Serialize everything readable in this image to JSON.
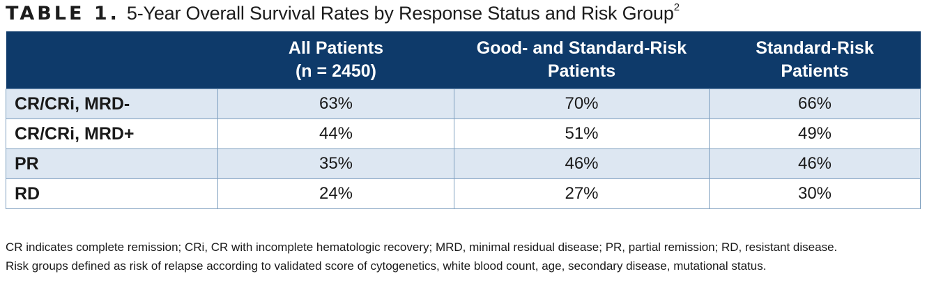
{
  "title": {
    "label": "TABLE 1.",
    "text": "5-Year Overall Survival Rates by Response Status and Risk Group",
    "superscript": "2"
  },
  "table": {
    "headers": [
      {
        "line1": "",
        "line2": ""
      },
      {
        "line1": "All Patients",
        "line2": "(n = 2450)"
      },
      {
        "line1": "Good- and Standard-Risk",
        "line2": "Patients"
      },
      {
        "line1": "Standard-Risk",
        "line2": "Patients"
      }
    ],
    "rows": [
      {
        "label": "CR/CRi, MRD-",
        "values": [
          "63%",
          "70%",
          "66%"
        ]
      },
      {
        "label": "CR/CRi, MRD+",
        "values": [
          "44%",
          "51%",
          "49%"
        ]
      },
      {
        "label": "PR",
        "values": [
          "35%",
          "46%",
          "46%"
        ]
      },
      {
        "label": "RD",
        "values": [
          "24%",
          "27%",
          "30%"
        ]
      }
    ]
  },
  "footnotes": [
    "CR indicates complete remission; CRi, CR with incomplete hematologic recovery; MRD, minimal residual disease; PR, partial remission; RD, resistant disease.",
    "Risk groups defined as risk of relapse according to validated score of cytogenetics, white blood count, age, secondary disease, mutational status."
  ],
  "colors": {
    "header_background": "#0e3a6a",
    "header_text": "#ffffff",
    "shaded_row": "#dde7f2",
    "grid_line": "#7e9fbf"
  }
}
